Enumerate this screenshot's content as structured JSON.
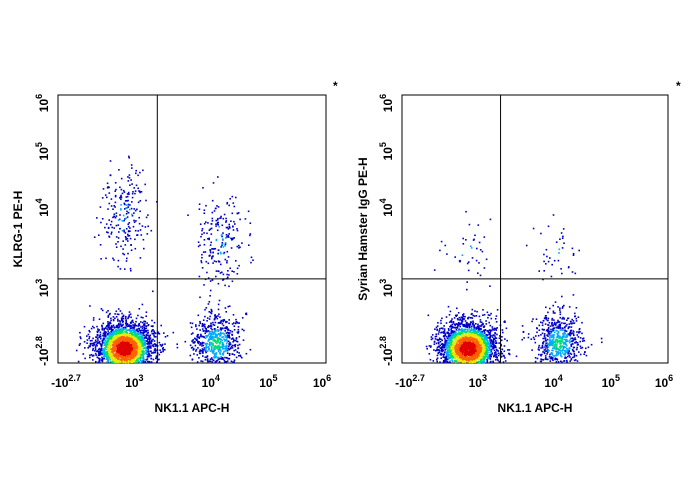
{
  "chart_data": [
    {
      "type": "scatter",
      "subtype": "flow-cytometry-density-dot-plot",
      "xlabel": "NK1.1 APC-H",
      "ylabel": "KLRG-1 PE-H",
      "x_scale": "biexponential",
      "y_scale": "biexponential",
      "xlim": [
        -631,
        1000000
      ],
      "ylim": [
        -631,
        1000000
      ],
      "x_ticks": [
        {
          "base": "-10",
          "exp": "2.7",
          "value": -501
        },
        {
          "base": "10",
          "exp": "3",
          "value": 1000
        },
        {
          "base": "10",
          "exp": "4",
          "value": 10000
        },
        {
          "base": "10",
          "exp": "5",
          "value": 100000
        },
        {
          "base": "10",
          "exp": "6",
          "value": 1000000
        }
      ],
      "y_ticks": [
        {
          "base": "-10",
          "exp": "2.8",
          "value": -631
        },
        {
          "base": "10",
          "exp": "3",
          "value": 1000
        },
        {
          "base": "10",
          "exp": "4",
          "value": 10000
        },
        {
          "base": "10",
          "exp": "5",
          "value": 100000
        },
        {
          "base": "10",
          "exp": "6",
          "value": 1000000
        }
      ],
      "quadrant_gate": {
        "x": 2000,
        "y": 1300
      },
      "corner_marker": "*",
      "populations": [
        {
          "name": "NK1.1- KLRG-1-",
          "x_center": 300,
          "y_center": -100,
          "relative_density": "very high"
        },
        {
          "name": "NK1.1- KLRG-1+",
          "x_center": 300,
          "y_center": 8000,
          "relative_density": "low"
        },
        {
          "name": "NK1.1+ KLRG-1-",
          "x_center": 12000,
          "y_center": -50,
          "relative_density": "medium"
        },
        {
          "name": "NK1.1+ KLRG-1+",
          "x_center": 14000,
          "y_center": 4000,
          "relative_density": "low"
        }
      ],
      "color_scale": [
        "#0000c8",
        "#00aaff",
        "#00e070",
        "#e8e800",
        "#ff6000",
        "#e00000"
      ],
      "grid": false
    },
    {
      "type": "scatter",
      "subtype": "flow-cytometry-density-dot-plot",
      "xlabel": "NK1.1 APC-H",
      "ylabel": "Syrian Hamster IgG PE-H",
      "x_scale": "biexponential",
      "y_scale": "biexponential",
      "xlim": [
        -631,
        1000000
      ],
      "ylim": [
        -631,
        1000000
      ],
      "x_ticks": [
        {
          "base": "-10",
          "exp": "2.7",
          "value": -501
        },
        {
          "base": "10",
          "exp": "3",
          "value": 1000
        },
        {
          "base": "10",
          "exp": "4",
          "value": 10000
        },
        {
          "base": "10",
          "exp": "5",
          "value": 100000
        },
        {
          "base": "10",
          "exp": "6",
          "value": 1000000
        }
      ],
      "y_ticks": [
        {
          "base": "-10",
          "exp": "2.8",
          "value": -631
        },
        {
          "base": "10",
          "exp": "3",
          "value": 1000
        },
        {
          "base": "10",
          "exp": "4",
          "value": 10000
        },
        {
          "base": "10",
          "exp": "5",
          "value": 100000
        },
        {
          "base": "10",
          "exp": "6",
          "value": 1000000
        }
      ],
      "quadrant_gate": {
        "x": 2000,
        "y": 1300
      },
      "corner_marker": "*",
      "populations": [
        {
          "name": "NK1.1- IgG-",
          "x_center": 300,
          "y_center": -100,
          "relative_density": "very high"
        },
        {
          "name": "NK1.1- IgG+",
          "x_center": 300,
          "y_center": 3000,
          "relative_density": "very low"
        },
        {
          "name": "NK1.1+ IgG-",
          "x_center": 12000,
          "y_center": -50,
          "relative_density": "medium"
        },
        {
          "name": "NK1.1+ IgG+",
          "x_center": 10000,
          "y_center": 3000,
          "relative_density": "very low"
        }
      ],
      "color_scale": [
        "#0000c8",
        "#00aaff",
        "#00e070",
        "#e8e800",
        "#ff6000",
        "#e00000"
      ],
      "grid": false
    }
  ]
}
